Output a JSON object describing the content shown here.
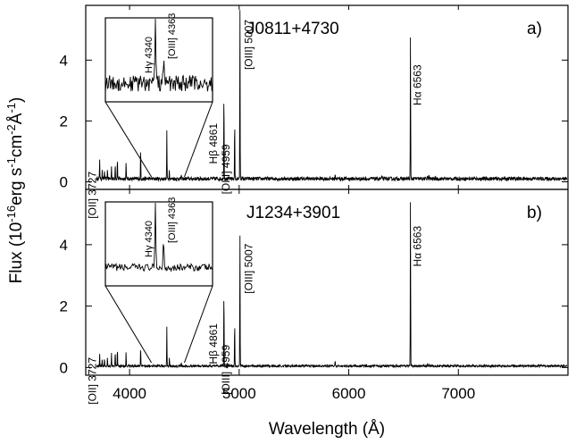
{
  "chart_data": {
    "type": "line",
    "xlabel": "Wavelength (Å)",
    "ylabel": "Flux (10-16erg s-1cm-2Å-1)",
    "ylabel_parts": {
      "base": "Flux (10",
      "exp1": "-16",
      "mid1": "erg s",
      "exp2": "-1",
      "mid2": "cm",
      "exp3": "-2",
      "mid3": "Å",
      "exp4": "-1",
      "end": ")"
    },
    "xlim": [
      3600,
      8000
    ],
    "x_ticks": [
      4000,
      5000,
      6000,
      7000
    ],
    "x_tick_labels": [
      "4000",
      "5000",
      "6000",
      "7000"
    ],
    "panels": [
      {
        "object": "J0811+4730",
        "tag": "a)",
        "ylim": [
          -0.25,
          5.8
        ],
        "y_ticks": [
          0,
          2,
          4
        ],
        "y_tick_labels": [
          "0",
          "2",
          "4"
        ],
        "continuum_level": 0.1,
        "emission_lines": [
          {
            "label": "[OII] 3727",
            "wavelength": 3727,
            "peak": 0.7
          },
          {
            "label": "Hγ 4340",
            "wavelength": 4340,
            "peak": 1.6
          },
          {
            "label": "[OIII] 4363",
            "wavelength": 4363,
            "peak": 0.35
          },
          {
            "label": "Hβ 4861",
            "wavelength": 4861,
            "peak": 3.1
          },
          {
            "label": "[OIII] 4959",
            "wavelength": 4959,
            "peak": 2.0
          },
          {
            "label": "[OIII] 5007",
            "wavelength": 5007,
            "peak": 5.8
          },
          {
            "label": "Hα 6563",
            "wavelength": 6563,
            "peak": 4.85
          }
        ],
        "minor_lines": [
          {
            "wavelength": 3750,
            "peak": 0.25
          },
          {
            "wavelength": 3771,
            "peak": 0.3
          },
          {
            "wavelength": 3798,
            "peak": 0.35
          },
          {
            "wavelength": 3835,
            "peak": 0.45
          },
          {
            "wavelength": 3869,
            "peak": 0.55
          },
          {
            "wavelength": 3889,
            "peak": 0.7
          },
          {
            "wavelength": 3968,
            "peak": 0.6
          },
          {
            "wavelength": 4101,
            "peak": 1.05
          },
          {
            "wavelength": 4471,
            "peak": 0.12
          },
          {
            "wavelength": 5876,
            "peak": 0.2
          },
          {
            "wavelength": 6300,
            "peak": 0.08
          },
          {
            "wavelength": 6717,
            "peak": 0.12
          },
          {
            "wavelength": 6731,
            "peak": 0.1
          }
        ],
        "inset": {
          "xlim": [
            4200,
            4500
          ],
          "lines": [
            {
              "label": "Hγ 4340",
              "wavelength": 4340
            },
            {
              "label": "[OIII] 4363",
              "wavelength": 4363
            }
          ]
        }
      },
      {
        "object": "J1234+3901",
        "tag": "b)",
        "ylim": [
          -0.25,
          5.8
        ],
        "y_ticks": [
          0,
          2,
          4
        ],
        "y_tick_labels": [
          "0",
          "2",
          "4"
        ],
        "continuum_level": 0.05,
        "emission_lines": [
          {
            "label": "[OII] 3727",
            "wavelength": 3727,
            "peak": 0.4
          },
          {
            "label": "Hγ 4340",
            "wavelength": 4340,
            "peak": 1.3
          },
          {
            "label": "[OIII] 4363",
            "wavelength": 4363,
            "peak": 0.3
          },
          {
            "label": "Hβ 4861",
            "wavelength": 4861,
            "peak": 2.6
          },
          {
            "label": "[OIII] 4959",
            "wavelength": 4959,
            "peak": 1.5
          },
          {
            "label": "[OIII] 5007",
            "wavelength": 5007,
            "peak": 4.5
          },
          {
            "label": "Hα 6563",
            "wavelength": 6563,
            "peak": 5.6
          }
        ],
        "minor_lines": [
          {
            "wavelength": 3750,
            "peak": 0.2
          },
          {
            "wavelength": 3771,
            "peak": 0.25
          },
          {
            "wavelength": 3798,
            "peak": 0.3
          },
          {
            "wavelength": 3835,
            "peak": 0.4
          },
          {
            "wavelength": 3869,
            "peak": 0.45
          },
          {
            "wavelength": 3889,
            "peak": 0.6
          },
          {
            "wavelength": 3968,
            "peak": 0.5
          },
          {
            "wavelength": 4101,
            "peak": 0.65
          },
          {
            "wavelength": 4471,
            "peak": 0.1
          },
          {
            "wavelength": 5876,
            "peak": 0.18
          },
          {
            "wavelength": 6717,
            "peak": 0.08
          },
          {
            "wavelength": 6731,
            "peak": 0.07
          },
          {
            "wavelength": 7136,
            "peak": 0.05
          },
          {
            "wavelength": 7750,
            "peak": 0.07
          }
        ],
        "inset": {
          "xlim": [
            4200,
            4500
          ],
          "lines": [
            {
              "label": "Hγ 4340",
              "wavelength": 4340
            },
            {
              "label": "[OIII] 4363",
              "wavelength": 4363
            }
          ]
        }
      }
    ]
  }
}
